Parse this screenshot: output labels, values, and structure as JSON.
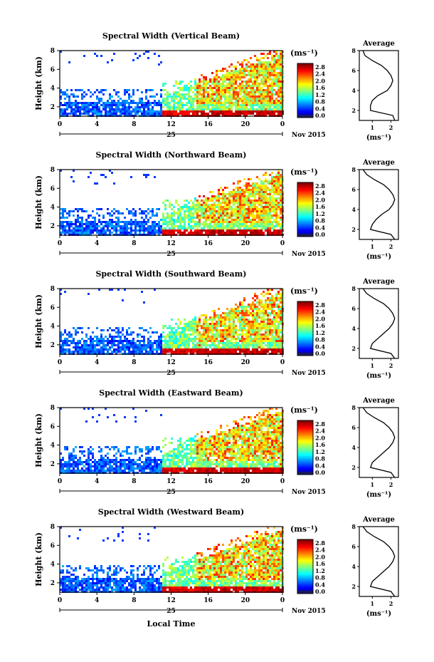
{
  "figure": {
    "common_xlabel": "Local Time",
    "date_day": "25",
    "date_month": "Nov 2015",
    "colorbar_unit": "(ms⁻¹)",
    "average_title": "Average",
    "average_xlabel": "(ms⁻¹)",
    "ylabel": "Height (km)"
  },
  "colorbar_ticks": [
    "2.8",
    "2.4",
    "2.0",
    "1.6",
    "1.2",
    "0.8",
    "0.4",
    "0.0"
  ],
  "chart_data": [
    {
      "type": "heatmap",
      "title": "Spectral Width (Vertical Beam)",
      "ylabel": "Height (km)",
      "xlabel": "Local Time",
      "x_ticks": [
        "0",
        "4",
        "8",
        "12",
        "16",
        "20",
        "0"
      ],
      "y_ticks": [
        "2",
        "4",
        "6",
        "8"
      ],
      "ylim": [
        1,
        8
      ],
      "xlim_hours": [
        0,
        24
      ],
      "colorbar": {
        "unit": "(ms⁻¹)",
        "range": [
          0,
          3.0
        ],
        "ticks": [
          "2.8",
          "2.4",
          "2.0",
          "1.6",
          "1.2",
          "0.8",
          "0.4",
          "0.0"
        ]
      },
      "average_profile": {
        "title": "Average",
        "xlabel": "(ms⁻¹)",
        "x_ticks": [
          "1",
          "2"
        ],
        "y_ticks": [
          "2",
          "4",
          "6",
          "8"
        ],
        "height_km": [
          1.0,
          1.5,
          2.0,
          2.5,
          3.0,
          3.5,
          4.0,
          4.5,
          5.0,
          5.5,
          6.0,
          6.5,
          7.0,
          7.5,
          8.0
        ],
        "width_ms": [
          2.2,
          2.1,
          0.9,
          0.9,
          1.0,
          1.3,
          1.8,
          2.0,
          2.1,
          2.0,
          1.8,
          1.5,
          1.0,
          0.6,
          0.5
        ]
      }
    },
    {
      "type": "heatmap",
      "title": "Spectral Width (Northward Beam)",
      "ylabel": "Height (km)",
      "xlabel": "Local Time",
      "x_ticks": [
        "0",
        "4",
        "8",
        "12",
        "16",
        "20",
        "0"
      ],
      "y_ticks": [
        "2",
        "4",
        "6",
        "8"
      ],
      "ylim": [
        1,
        8
      ],
      "xlim_hours": [
        0,
        24
      ],
      "colorbar": {
        "unit": "(ms⁻¹)",
        "range": [
          0,
          3.0
        ],
        "ticks": [
          "2.8",
          "2.4",
          "2.0",
          "1.6",
          "1.2",
          "0.8",
          "0.4",
          "0.0"
        ]
      },
      "average_profile": {
        "title": "Average",
        "xlabel": "(ms⁻¹)",
        "x_ticks": [
          "1",
          "2"
        ],
        "y_ticks": [
          "2",
          "4",
          "6",
          "8"
        ],
        "height_km": [
          1.0,
          1.5,
          2.0,
          2.5,
          3.0,
          3.5,
          4.0,
          4.5,
          5.0,
          5.5,
          6.0,
          6.5,
          7.0,
          7.5,
          8.0
        ],
        "width_ms": [
          2.2,
          2.0,
          0.9,
          1.0,
          1.2,
          1.5,
          1.9,
          2.1,
          2.2,
          2.1,
          1.9,
          1.6,
          1.1,
          0.7,
          0.5
        ]
      }
    },
    {
      "type": "heatmap",
      "title": "Spectral Width (Southward Beam)",
      "ylabel": "Height (km)",
      "xlabel": "Local Time",
      "x_ticks": [
        "0",
        "4",
        "8",
        "12",
        "16",
        "20",
        "0"
      ],
      "y_ticks": [
        "2",
        "4",
        "6",
        "8"
      ],
      "ylim": [
        1,
        8
      ],
      "xlim_hours": [
        0,
        24
      ],
      "colorbar": {
        "unit": "(ms⁻¹)",
        "range": [
          0,
          3.0
        ],
        "ticks": [
          "2.8",
          "2.4",
          "2.0",
          "1.6",
          "1.2",
          "0.8",
          "0.4",
          "0.0"
        ]
      },
      "average_profile": {
        "title": "Average",
        "xlabel": "(ms⁻¹)",
        "x_ticks": [
          "1",
          "2"
        ],
        "y_ticks": [
          "2",
          "4",
          "6",
          "8"
        ],
        "height_km": [
          1.0,
          1.5,
          2.0,
          2.5,
          3.0,
          3.5,
          4.0,
          4.5,
          5.0,
          5.5,
          6.0,
          6.5,
          7.0,
          7.5,
          8.0
        ],
        "width_ms": [
          2.2,
          2.0,
          0.9,
          1.0,
          1.3,
          1.6,
          1.9,
          2.1,
          2.2,
          2.1,
          1.9,
          1.6,
          1.1,
          0.7,
          0.5
        ]
      }
    },
    {
      "type": "heatmap",
      "title": "Spectral Width (Eastward Beam)",
      "ylabel": "Height (km)",
      "xlabel": "Local Time",
      "x_ticks": [
        "0",
        "4",
        "8",
        "12",
        "16",
        "20",
        "0"
      ],
      "y_ticks": [
        "2",
        "4",
        "6",
        "8"
      ],
      "ylim": [
        1,
        8
      ],
      "xlim_hours": [
        0,
        24
      ],
      "colorbar": {
        "unit": "(ms⁻¹)",
        "range": [
          0,
          3.0
        ],
        "ticks": [
          "2.8",
          "2.4",
          "2.0",
          "1.6",
          "1.2",
          "0.8",
          "0.4",
          "0.0"
        ]
      },
      "average_profile": {
        "title": "Average",
        "xlabel": "(ms⁻¹)",
        "x_ticks": [
          "1",
          "2"
        ],
        "y_ticks": [
          "2",
          "4",
          "6",
          "8"
        ],
        "height_km": [
          1.0,
          1.5,
          2.0,
          2.5,
          3.0,
          3.5,
          4.0,
          4.5,
          5.0,
          5.5,
          6.0,
          6.5,
          7.0,
          7.5,
          8.0
        ],
        "width_ms": [
          2.2,
          2.0,
          0.9,
          1.0,
          1.3,
          1.6,
          1.9,
          2.1,
          2.2,
          2.1,
          1.9,
          1.6,
          1.1,
          0.7,
          0.5
        ]
      }
    },
    {
      "type": "heatmap",
      "title": "Spectral Width (Westward Beam)",
      "ylabel": "Height (km)",
      "xlabel": "Local Time",
      "x_ticks": [
        "0",
        "4",
        "8",
        "12",
        "16",
        "20",
        "0"
      ],
      "y_ticks": [
        "2",
        "4",
        "6",
        "8"
      ],
      "ylim": [
        1,
        8
      ],
      "xlim_hours": [
        0,
        24
      ],
      "colorbar": {
        "unit": "(ms⁻¹)",
        "range": [
          0,
          3.0
        ],
        "ticks": [
          "2.8",
          "2.4",
          "2.0",
          "1.6",
          "1.2",
          "0.8",
          "0.4",
          "0.0"
        ]
      },
      "average_profile": {
        "title": "Average",
        "xlabel": "(ms⁻¹)",
        "x_ticks": [
          "1",
          "2"
        ],
        "y_ticks": [
          "2",
          "4",
          "6",
          "8"
        ],
        "height_km": [
          1.0,
          1.5,
          2.0,
          2.5,
          3.0,
          3.5,
          4.0,
          4.5,
          5.0,
          5.5,
          6.0,
          6.5,
          7.0,
          7.5,
          8.0
        ],
        "width_ms": [
          2.2,
          2.0,
          0.9,
          1.0,
          1.3,
          1.6,
          1.9,
          2.1,
          2.2,
          2.1,
          1.9,
          1.6,
          1.1,
          0.7,
          0.5
        ]
      }
    }
  ]
}
